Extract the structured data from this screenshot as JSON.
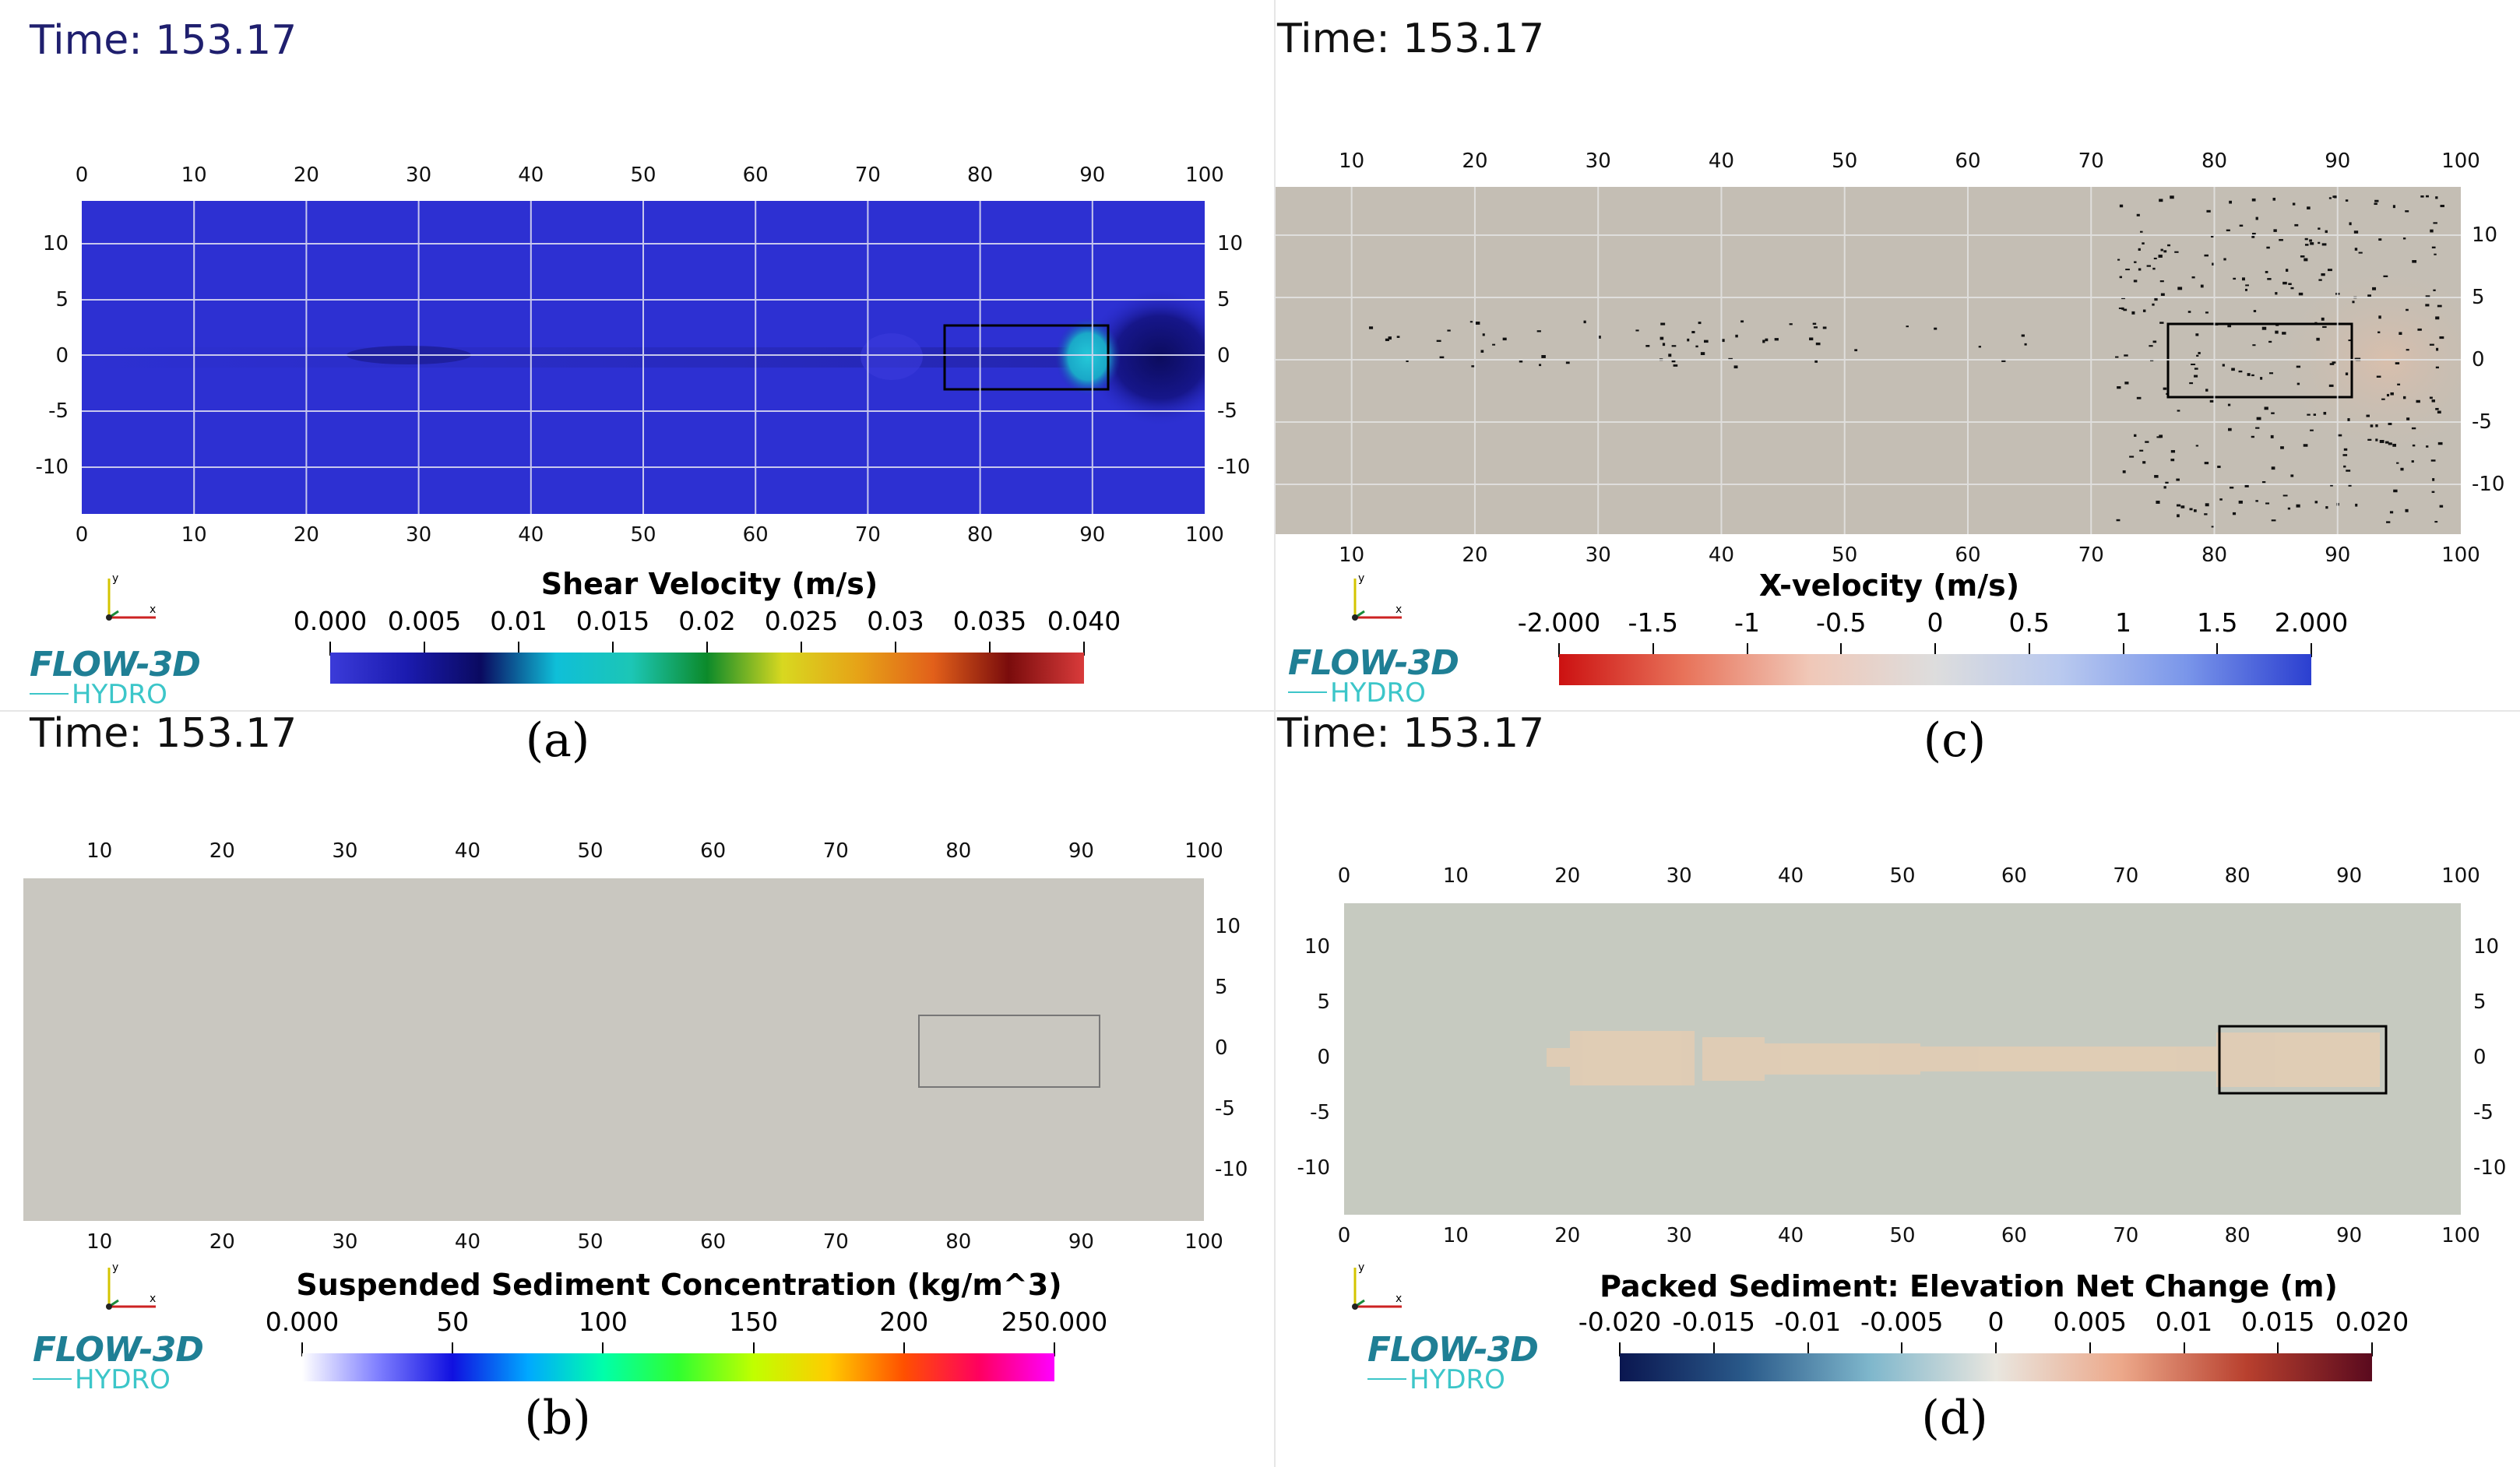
{
  "panels": {
    "a": {
      "time": "Time: 153.17",
      "caption": "(a)",
      "legend_title": "Shear Velocity (m/s)",
      "legend_ticks": [
        "0.000",
        "0.005",
        "0.01",
        "0.015",
        "0.02",
        "0.025",
        "0.03",
        "0.035",
        "0.040"
      ],
      "xticks": [
        "0",
        "10",
        "20",
        "30",
        "40",
        "50",
        "60",
        "70",
        "80",
        "90",
        "100"
      ],
      "yticks": [
        "10",
        "5",
        "0",
        "-5",
        "-10"
      ],
      "bg_color": "#2b2fd0",
      "logo": {
        "brand": "FLOW-3D",
        "product": "HYDRO"
      }
    },
    "b": {
      "time": "Time: 153.17",
      "caption": "(b)",
      "legend_title": "Suspended Sediment Concentration (kg/m^3)",
      "legend_ticks": [
        "0.000",
        "50",
        "100",
        "150",
        "200",
        "250.000"
      ],
      "xticks": [
        "10",
        "20",
        "30",
        "40",
        "50",
        "60",
        "70",
        "80",
        "90",
        "100"
      ],
      "yticks": [
        "10",
        "5",
        "0",
        "-5",
        "-10"
      ],
      "bg_color": "#c8c6bf",
      "logo": {
        "brand": "FLOW-3D",
        "product": "HYDRO"
      }
    },
    "c": {
      "time": "Time: 153.17",
      "caption": "(c)",
      "legend_title": "X-velocity (m/s)",
      "legend_ticks": [
        "-2.000",
        "-1.5",
        "-1",
        "-0.5",
        "0",
        "0.5",
        "1",
        "1.5",
        "2.000"
      ],
      "xticks": [
        "10",
        "20",
        "30",
        "40",
        "50",
        "60",
        "70",
        "80",
        "90",
        "100"
      ],
      "yticks": [
        "10",
        "5",
        "0",
        "-5",
        "-10"
      ],
      "bg_color": "#c3bdb3",
      "logo": {
        "brand": "FLOW-3D",
        "product": "HYDRO"
      }
    },
    "d": {
      "time": "Time: 153.17",
      "caption": "(d)",
      "legend_title": "Packed Sediment: Elevation Net Change (m)",
      "legend_ticks": [
        "-0.020",
        "-0.015",
        "-0.01",
        "-0.005",
        "0",
        "0.005",
        "0.01",
        "0.015",
        "0.020"
      ],
      "xticks": [
        "0",
        "10",
        "20",
        "30",
        "40",
        "50",
        "60",
        "70",
        "80",
        "90",
        "100"
      ],
      "yticks": [
        "10",
        "5",
        "0",
        "-5",
        "-10"
      ],
      "bg_color": "#c5c9bf",
      "logo": {
        "brand": "FLOW-3D",
        "product": "HYDRO"
      }
    }
  },
  "colormaps": {
    "shear": [
      "#3b3bd9",
      "#1b1bb0",
      "#0a0a60",
      "#0fbfd8",
      "#1cc6b5",
      "#0c8a2a",
      "#d8d820",
      "#e6a317",
      "#e2601a",
      "#7a0c0c",
      "#d93b3b"
    ],
    "sediment": [
      "#ffffff",
      "#8080ff",
      "#1010e0",
      "#00a8ff",
      "#00ffaa",
      "#30ff30",
      "#c0ff00",
      "#ffcc00",
      "#ff5000",
      "#ff0060",
      "#ff00ff"
    ],
    "velocity": [
      "#cc1111",
      "#e8735a",
      "#f0c8b8",
      "#dddddd",
      "#b9c9ef",
      "#7a96ea",
      "#2b3fd0"
    ],
    "elevation": [
      "#0a1650",
      "#2a5a8a",
      "#7fb7cc",
      "#e9e6df",
      "#eca88a",
      "#b8402e",
      "#5a0a1e"
    ]
  }
}
